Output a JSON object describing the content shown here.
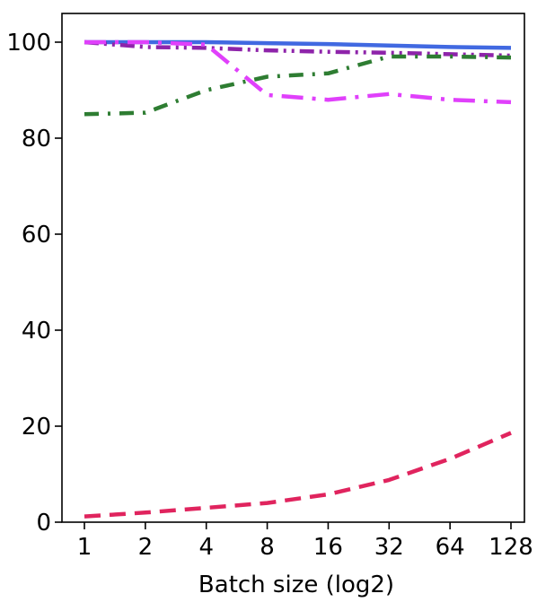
{
  "chart_data": {
    "type": "line",
    "title": "",
    "xlabel": "Batch size (log2)",
    "ylabel": "",
    "categories": [
      "1",
      "2",
      "4",
      "8",
      "16",
      "32",
      "64",
      "128"
    ],
    "x": [
      1,
      2,
      4,
      8,
      16,
      32,
      64,
      128
    ],
    "xscale": "log2",
    "ylim": [
      0,
      102
    ],
    "yticks": [
      0,
      20,
      40,
      60,
      80,
      100
    ],
    "grid": false,
    "legend": "none",
    "series": [
      {
        "color": "#4169E1",
        "linestyle": "solid",
        "values": [
          100,
          100,
          100,
          99.8,
          99.6,
          99.3,
          99.0,
          98.8
        ]
      },
      {
        "color": "#8E24AA",
        "linestyle": "dash-dot-dot",
        "values": [
          100,
          99.0,
          98.8,
          98.3,
          98.0,
          97.8,
          97.5,
          97.2
        ]
      },
      {
        "color": "#2E7D32",
        "linestyle": "dash-dot",
        "values": [
          85.0,
          85.3,
          90.0,
          92.8,
          93.5,
          97.0,
          97.0,
          96.8
        ]
      },
      {
        "color": "#E040FB",
        "linestyle": "long-dash-dot",
        "values": [
          100,
          100,
          99.5,
          89.0,
          88.0,
          89.2,
          88.0,
          87.5
        ]
      },
      {
        "color": "#E0245E",
        "linestyle": "dashed",
        "values": [
          1.2,
          2.0,
          3.0,
          4.0,
          5.8,
          8.8,
          13.2,
          18.6
        ]
      }
    ]
  }
}
